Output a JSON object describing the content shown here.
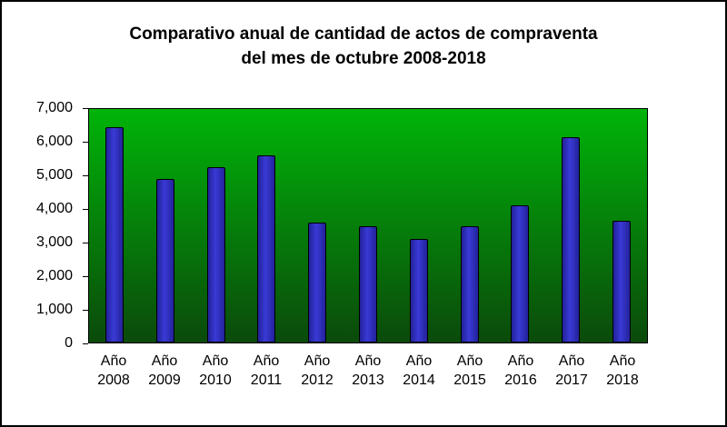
{
  "chart_data": {
    "type": "bar",
    "title": "Comparativo anual de cantidad de actos de compraventa del mes de octubre 2008-2018",
    "title_line1": "Comparativo anual de cantidad de actos de compraventa",
    "title_line2": "del mes de octubre 2008-2018",
    "category_prefix": "Año",
    "categories": [
      "2008",
      "2009",
      "2010",
      "2011",
      "2012",
      "2013",
      "2014",
      "2015",
      "2016",
      "2017",
      "2018"
    ],
    "values": [
      6450,
      4900,
      5250,
      5600,
      3600,
      3500,
      3100,
      3500,
      4100,
      6150,
      3650
    ],
    "xlabel": "",
    "ylabel": "",
    "ylim": [
      0,
      7000
    ],
    "ytick_step": 1000,
    "ytick_labels": [
      "7,000",
      "6,000",
      "5,000",
      "4,000",
      "3,000",
      "2,000",
      "1,000",
      "0"
    ],
    "grid": false,
    "legend": false,
    "colors": {
      "bar": "#3a3ad6",
      "bar_edge": "#22229a",
      "bar_border": "#000000",
      "plot_top": "#00b409",
      "plot_bottom": "#0b4a0b",
      "frame": "#000000",
      "background": "#ffffff",
      "text": "#000000"
    }
  }
}
